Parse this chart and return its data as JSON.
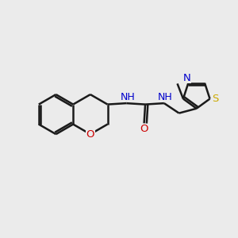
{
  "background_color": "#ebebeb",
  "bond_color": "#1a1a1a",
  "bond_width": 1.8,
  "atom_colors": {
    "C": "#1a1a1a",
    "N": "#0000cc",
    "O": "#cc0000",
    "S": "#ccaa00",
    "H": "#555555"
  },
  "figsize": [
    3.0,
    3.0
  ],
  "dpi": 100
}
